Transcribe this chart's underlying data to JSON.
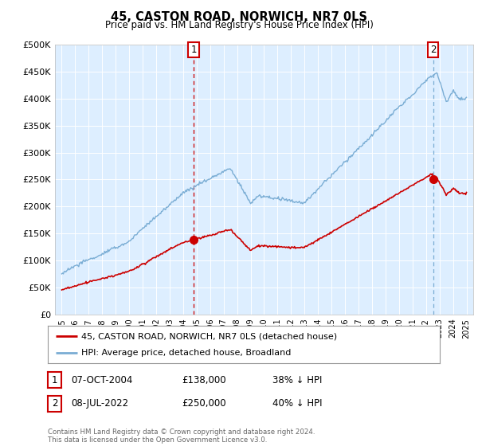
{
  "title": "45, CASTON ROAD, NORWICH, NR7 0LS",
  "subtitle": "Price paid vs. HM Land Registry's House Price Index (HPI)",
  "ylabel_ticks": [
    "£0",
    "£50K",
    "£100K",
    "£150K",
    "£200K",
    "£250K",
    "£300K",
    "£350K",
    "£400K",
    "£450K",
    "£500K"
  ],
  "ytick_values": [
    0,
    50000,
    100000,
    150000,
    200000,
    250000,
    300000,
    350000,
    400000,
    450000,
    500000
  ],
  "ylim": [
    0,
    500000
  ],
  "hpi_color": "#7aadd4",
  "price_color": "#cc0000",
  "sale1_date_x": 2004.77,
  "sale1_price": 138000,
  "sale2_date_x": 2022.52,
  "sale2_price": 250000,
  "vline1_color": "#cc0000",
  "vline2_color": "#7aadd4",
  "legend_line1": "45, CASTON ROAD, NORWICH, NR7 0LS (detached house)",
  "legend_line2": "HPI: Average price, detached house, Broadland",
  "table_row1": [
    "1",
    "07-OCT-2004",
    "£138,000",
    "38% ↓ HPI"
  ],
  "table_row2": [
    "2",
    "08-JUL-2022",
    "£250,000",
    "40% ↓ HPI"
  ],
  "footer": "Contains HM Land Registry data © Crown copyright and database right 2024.\nThis data is licensed under the Open Government Licence v3.0.",
  "background_color": "#ffffff",
  "chart_bg_color": "#ddeeff",
  "grid_color": "#ffffff",
  "xlim_start": 1994.5,
  "xlim_end": 2025.5,
  "xtick_years": [
    1995,
    1996,
    1997,
    1998,
    1999,
    2000,
    2001,
    2002,
    2003,
    2004,
    2005,
    2006,
    2007,
    2008,
    2009,
    2010,
    2011,
    2012,
    2013,
    2014,
    2015,
    2016,
    2017,
    2018,
    2019,
    2020,
    2021,
    2022,
    2023,
    2024,
    2025
  ]
}
